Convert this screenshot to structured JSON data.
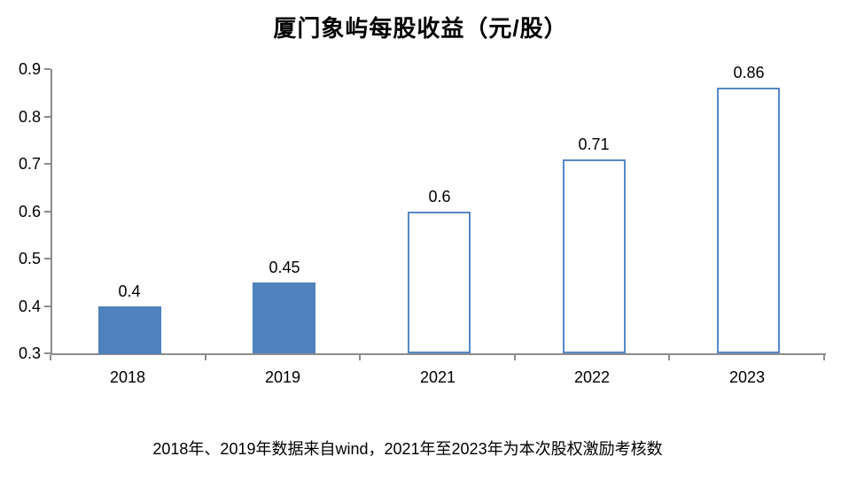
{
  "title": "厦门象屿每股收益（元/股）",
  "footnote": "2018年、2019年数据来自wind，2021年至2023年为本次股权激励考核数",
  "chart_data": {
    "type": "bar",
    "title": "厦门象屿每股收益（元/股）",
    "categories": [
      "2018",
      "2019",
      "2021",
      "2022",
      "2023"
    ],
    "values": [
      0.4,
      0.45,
      0.6,
      0.71,
      0.86
    ],
    "data_labels": [
      "0.4",
      "0.45",
      "0.6",
      "0.71",
      "0.86"
    ],
    "bar_styles": [
      "solid",
      "solid",
      "outline",
      "outline",
      "outline"
    ],
    "xlabel": "",
    "ylabel": "",
    "ylim": [
      0.3,
      0.9
    ],
    "ytick_interval": 0.1,
    "yticks": [
      "0.3",
      "0.4",
      "0.5",
      "0.6",
      "0.7",
      "0.8",
      "0.9"
    ],
    "grid": false,
    "legend": "none",
    "colors": {
      "bar_fill": "#4F81BD",
      "bar_outline": "#5588C7",
      "axis": "#8C8C8C",
      "text": "#000000"
    }
  }
}
